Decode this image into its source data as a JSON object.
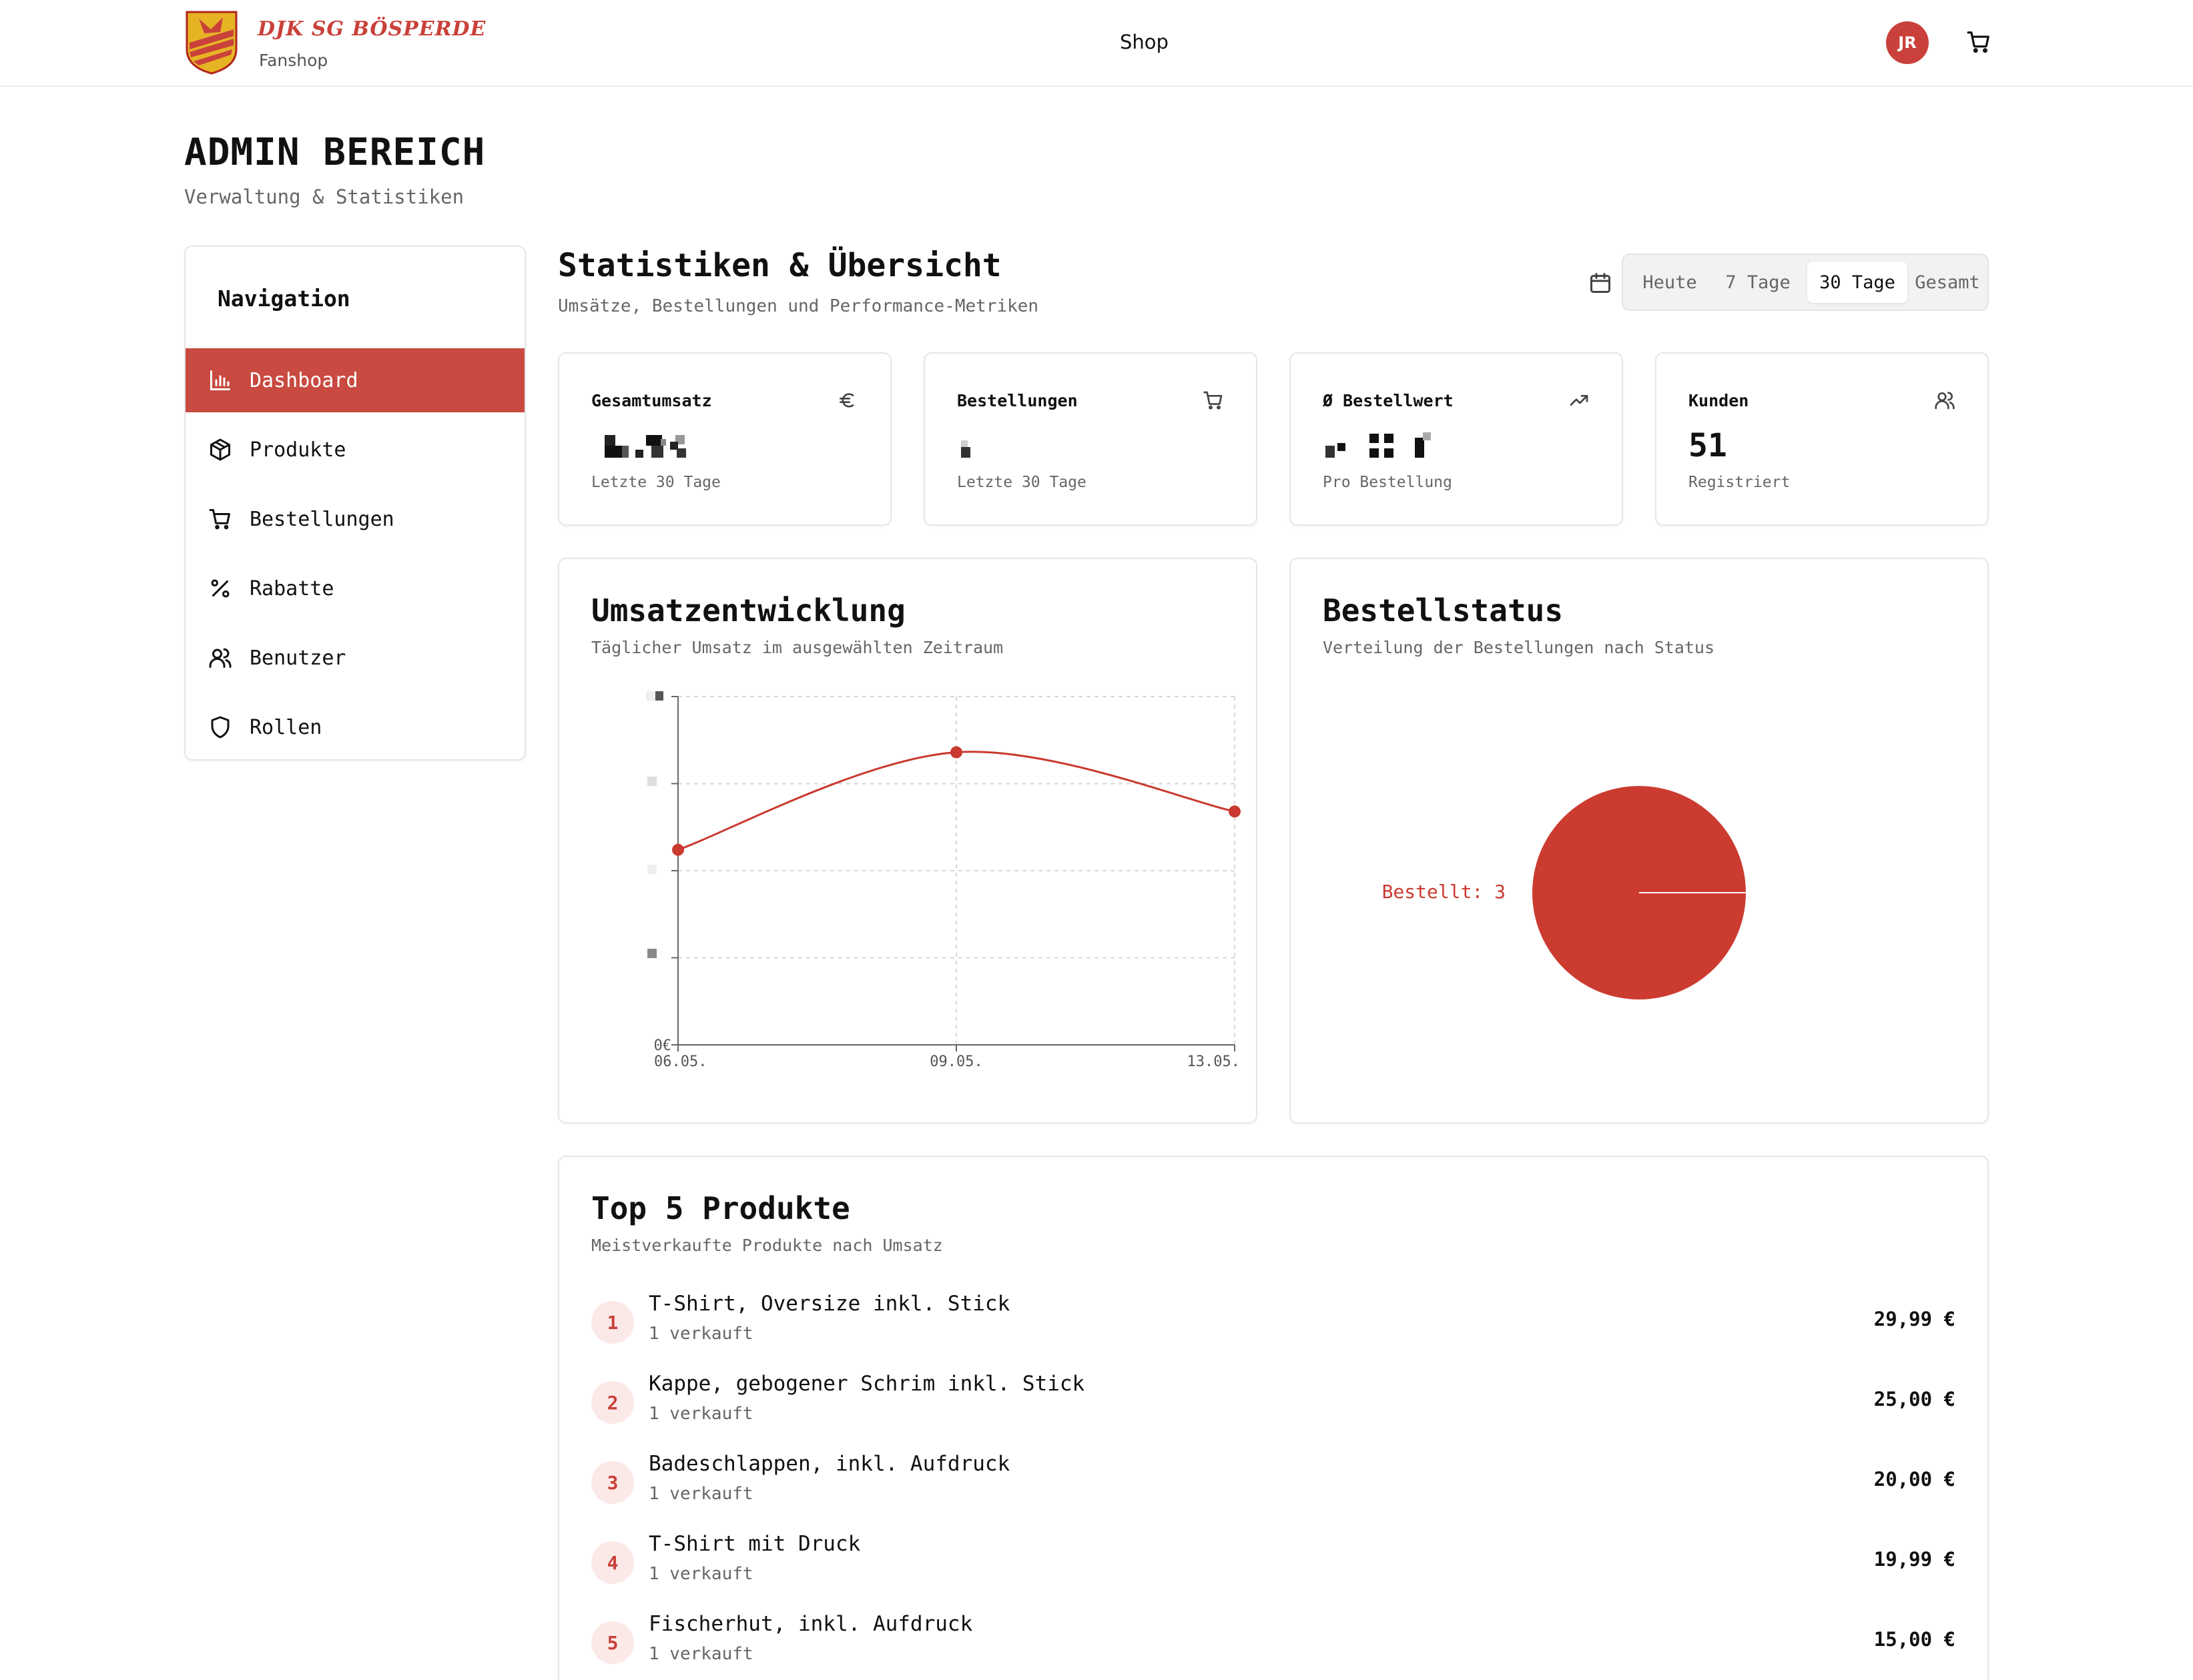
{
  "brand": {
    "name": "DJK SG BÖSPERDE",
    "subtitle": "Fanshop"
  },
  "topnav": {
    "shop_label": "Shop",
    "avatar_initials": "JR"
  },
  "page": {
    "title": "ADMIN BEREICH",
    "subtitle": "Verwaltung & Statistiken"
  },
  "sidebar": {
    "title": "Navigation",
    "items": [
      {
        "label": "Dashboard",
        "icon": "bar-chart-icon",
        "active": true
      },
      {
        "label": "Produkte",
        "icon": "package-icon",
        "active": false
      },
      {
        "label": "Bestellungen",
        "icon": "cart-icon",
        "active": false
      },
      {
        "label": "Rabatte",
        "icon": "percent-icon",
        "active": false
      },
      {
        "label": "Benutzer",
        "icon": "users-icon",
        "active": false
      },
      {
        "label": "Rollen",
        "icon": "shield-icon",
        "active": false
      }
    ]
  },
  "main": {
    "title": "Statistiken & Übersicht",
    "subtitle": "Umsätze, Bestellungen und Performance-Metriken",
    "ranges": [
      "Heute",
      "7 Tage",
      "30 Tage",
      "Gesamt"
    ],
    "selected_range": "30 Tage"
  },
  "stats": [
    {
      "label": "Gesamtumsatz",
      "icon": "euro-icon",
      "value": "",
      "desc": "Letzte 30 Tage"
    },
    {
      "label": "Bestellungen",
      "icon": "cart-icon",
      "value": "",
      "desc": "Letzte 30 Tage"
    },
    {
      "label": "Ø Bestellwert",
      "icon": "trending-up-icon",
      "value": "",
      "desc": "Pro Bestellung"
    },
    {
      "label": "Kunden",
      "icon": "users-icon",
      "value": "51",
      "desc": "Registriert"
    }
  ],
  "revenue_panel": {
    "title": "Umsatzentwicklung",
    "subtitle": "Täglicher Umsatz im ausgewählten Zeitraum"
  },
  "status_panel": {
    "title": "Bestellstatus",
    "subtitle": "Verteilung der Bestellungen nach Status"
  },
  "chart_data": [
    {
      "type": "line",
      "x": [
        "06.05.",
        "09.05.",
        "13.05."
      ],
      "series": [
        {
          "values": [
            0.56,
            0.84,
            0.67
          ]
        }
      ],
      "y_tick_labels": [
        "0€"
      ],
      "ylim": [
        0,
        1
      ],
      "grid": true,
      "color": "#c9392f"
    },
    {
      "type": "pie",
      "slices": [
        {
          "label": "Bestellt",
          "value": 3,
          "color": "#cc3b30"
        }
      ],
      "slice_label": "Bestellt: 3"
    }
  ],
  "top_products": {
    "title": "Top 5 Produkte",
    "subtitle": "Meistverkaufte Produkte nach Umsatz",
    "items": [
      {
        "rank": "1",
        "name": "T-Shirt, Oversize inkl. Stick",
        "sold": "1 verkauft",
        "price": "29,99 €"
      },
      {
        "rank": "2",
        "name": "Kappe, gebogener Schrim inkl. Stick",
        "sold": "1 verkauft",
        "price": "25,00 €"
      },
      {
        "rank": "3",
        "name": "Badeschlappen, inkl. Aufdruck",
        "sold": "1 verkauft",
        "price": "20,00 €"
      },
      {
        "rank": "4",
        "name": "T-Shirt mit Druck",
        "sold": "1 verkauft",
        "price": "19,99 €"
      },
      {
        "rank": "5",
        "name": "Fischerhut, inkl. Aufdruck",
        "sold": "1 verkauft",
        "price": "15,00 €"
      }
    ]
  },
  "colors": {
    "accent": "#c9413a",
    "accent_light": "#fbe9e7",
    "border": "#e6e6e6",
    "muted": "#666666"
  }
}
